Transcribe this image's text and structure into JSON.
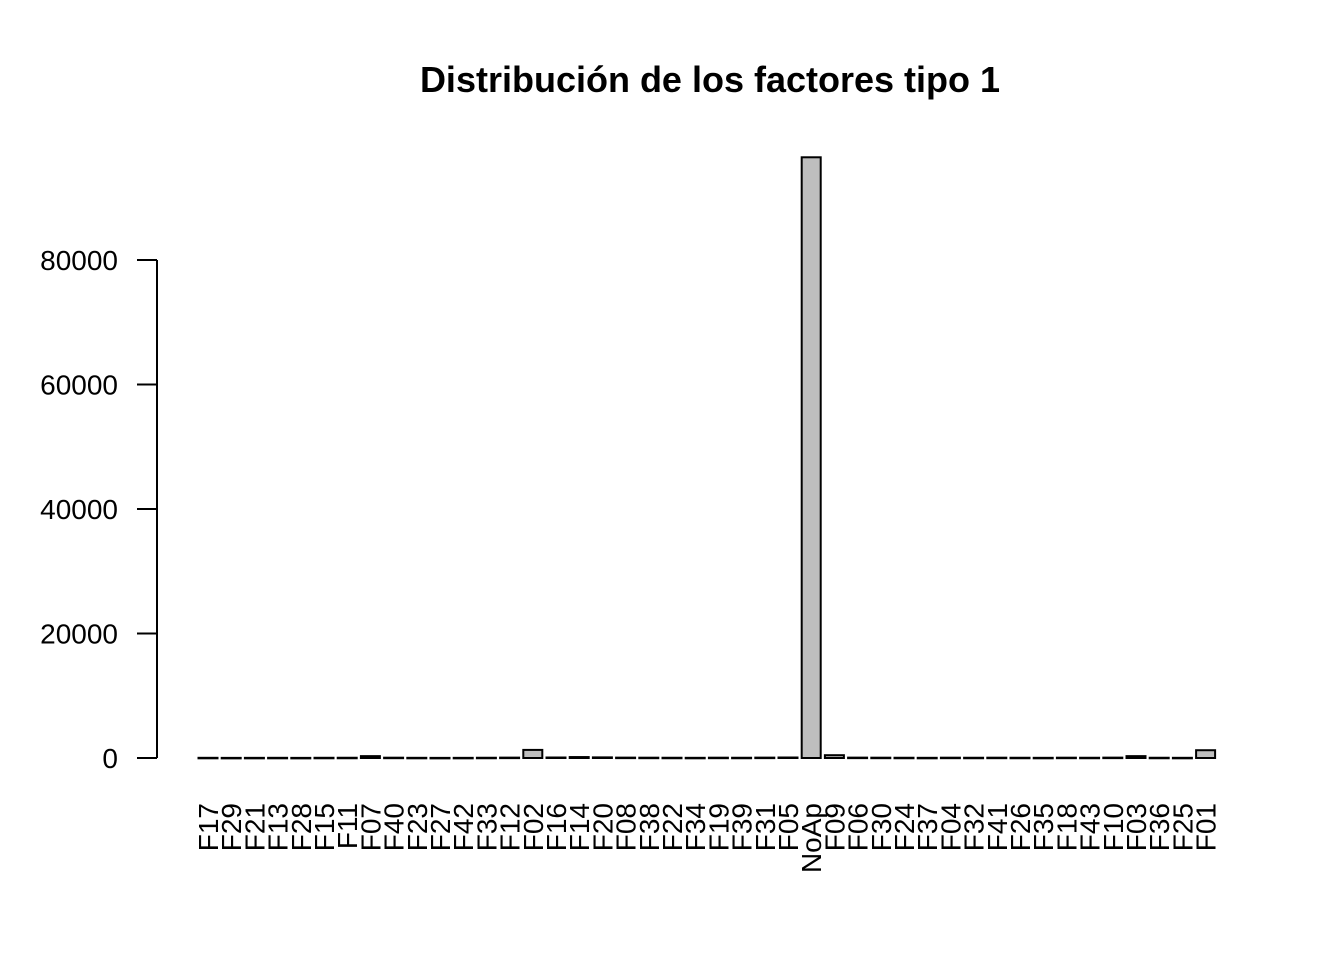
{
  "chart_data": {
    "type": "bar",
    "title": "Distribución de los factores tipo 1",
    "xlabel": "",
    "ylabel": "",
    "ylim": [
      0,
      96000
    ],
    "yticks": [
      0,
      20000,
      40000,
      60000,
      80000
    ],
    "ytick_labels": [
      "0",
      "20000",
      "40000",
      "60000",
      "80000"
    ],
    "bar_fill": "#bebebe",
    "bar_stroke": "#000000",
    "grid": false,
    "legend": "none",
    "categories": [
      "F17",
      "F29",
      "F21",
      "F13",
      "F28",
      "F15",
      "F11",
      "F07",
      "F40",
      "F23",
      "F27",
      "F42",
      "F33",
      "F12",
      "F02",
      "F16",
      "F14",
      "F20",
      "F08",
      "F38",
      "F22",
      "F34",
      "F19",
      "F39",
      "F31",
      "F05",
      "NoAp",
      "F09",
      "F06",
      "F30",
      "F24",
      "F37",
      "F04",
      "F32",
      "F41",
      "F26",
      "F35",
      "F18",
      "F43",
      "F10",
      "F03",
      "F36",
      "F25",
      "F01"
    ],
    "values": [
      30,
      20,
      25,
      30,
      20,
      35,
      40,
      300,
      50,
      30,
      20,
      25,
      40,
      60,
      1300,
      80,
      150,
      100,
      60,
      50,
      40,
      30,
      50,
      40,
      60,
      80,
      96500,
      450,
      60,
      50,
      40,
      30,
      50,
      40,
      50,
      40,
      30,
      50,
      40,
      60,
      300,
      40,
      30,
      1250
    ]
  }
}
